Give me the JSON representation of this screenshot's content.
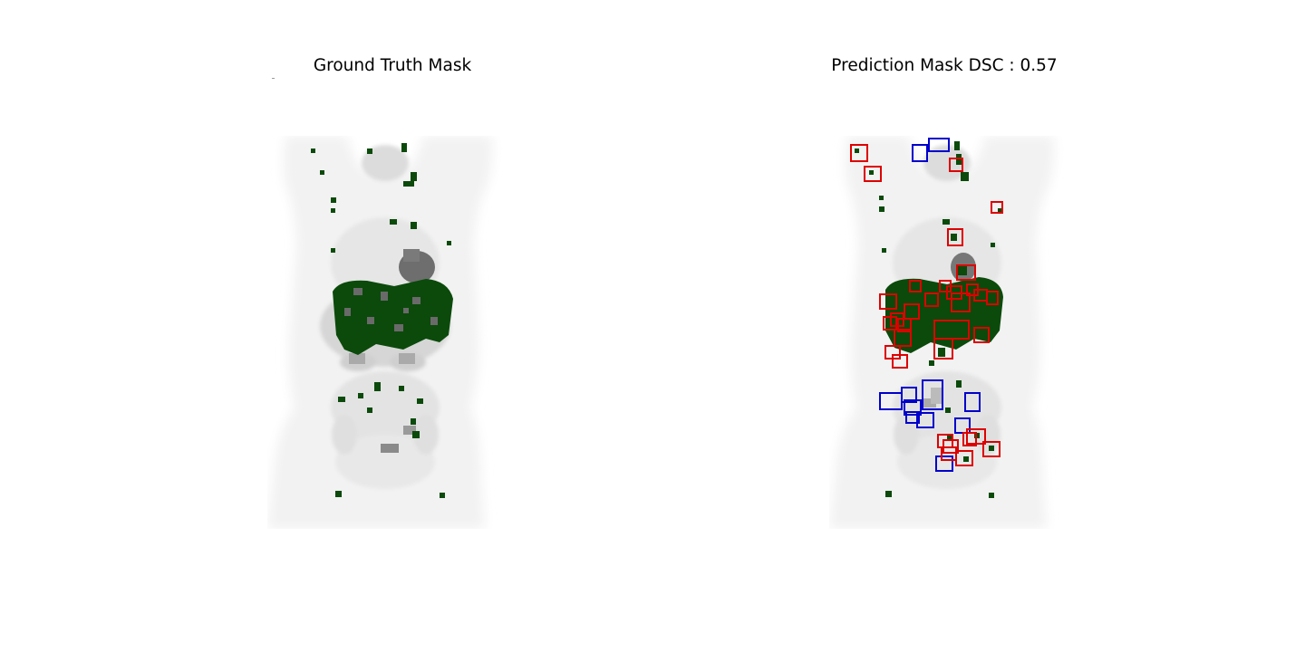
{
  "figure": {
    "left_title": "Ground Truth Mask",
    "right_title": "Prediction Mask DSC : 0.57"
  },
  "colors": {
    "background": "#ffffff",
    "body_mip": "#f1f1f1",
    "organ_uptake": "#6e6e6e",
    "mask": "#0b4a0b",
    "false_positive_box": "#e00000",
    "false_negative_box": "#0000cc"
  }
}
